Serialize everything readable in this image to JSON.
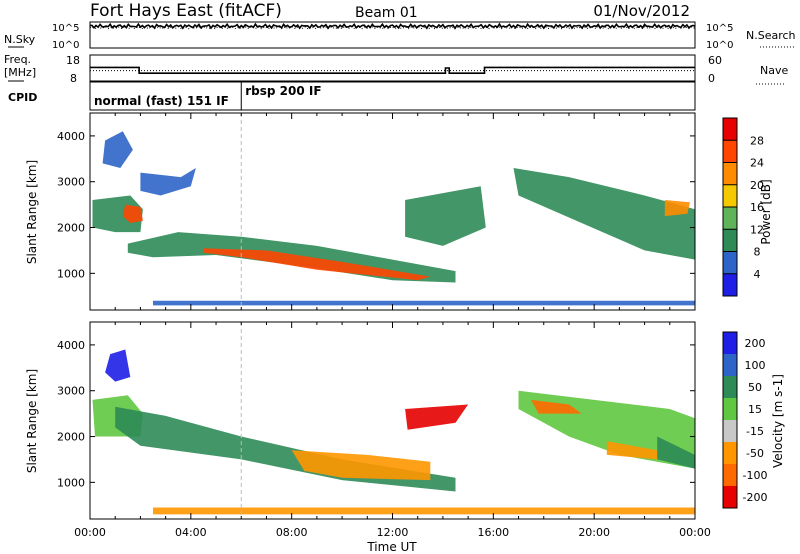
{
  "header": {
    "station": "Fort Hays East (fitACF)",
    "beam": "Beam 01",
    "date": "01/Nov/2012"
  },
  "noise_panel": {
    "left_label": "N.Sky",
    "right_label": "N.Search",
    "ticks": [
      "10^5",
      "10^0"
    ],
    "sky_level": 4.2,
    "search_level": 3.9
  },
  "freq_panel": {
    "left_label_1": "Freq.",
    "left_label_2": "[MHz]",
    "right_label": "Nave",
    "left_ticks": [
      18,
      8
    ],
    "right_ticks": [
      60,
      0
    ],
    "freq_steps": [
      {
        "t": 0.0,
        "v": 13.2
      },
      {
        "t": 1.95,
        "v": 11.0
      },
      {
        "t": 14.1,
        "v": 13.0
      },
      {
        "t": 14.25,
        "v": 11.0
      },
      {
        "t": 15.65,
        "v": 13.2
      },
      {
        "t": 24.0,
        "v": 13.2
      }
    ],
    "nave_level": 24
  },
  "cpid": {
    "label": "CPID",
    "programs": [
      {
        "name": "normal (fast) 151 IF",
        "start": 0.0,
        "end": 6.0
      },
      {
        "name": "rbsp 200 IF",
        "start": 6.0,
        "end": 24.0
      }
    ]
  },
  "chart_data": [
    {
      "type": "heatmap",
      "title": "Power",
      "xlabel": "",
      "ylabel": "Slant Range [km]",
      "xlim": [
        0,
        24
      ],
      "ylim": [
        200,
        4500
      ],
      "y_ticks": [
        1000,
        2000,
        3000,
        4000
      ],
      "colorbar": {
        "label": "Power [dB]",
        "ticks": [
          4,
          8,
          12,
          16,
          20,
          24,
          28
        ],
        "range": [
          0,
          32
        ],
        "colors": [
          "#1e1ee6",
          "#2d64c8",
          "#2e8b57",
          "#5fb45a",
          "#f5c800",
          "#ff8c00",
          "#ff4500",
          "#e60000"
        ]
      },
      "regions": [
        {
          "path": [
            [
              0.1,
              2600
            ],
            [
              1.6,
              2700
            ],
            [
              2.1,
              2400
            ],
            [
              2.0,
              1900
            ],
            [
              1.0,
              1900
            ],
            [
              0.1,
              2000
            ]
          ],
          "value": 10
        },
        {
          "path": [
            [
              1.4,
              2500
            ],
            [
              2.0,
              2450
            ],
            [
              2.1,
              2150
            ],
            [
              1.6,
              2100
            ],
            [
              1.3,
              2250
            ]
          ],
          "value": 26
        },
        {
          "path": [
            [
              0.6,
              3900
            ],
            [
              1.3,
              4100
            ],
            [
              1.7,
              3700
            ],
            [
              1.2,
              3300
            ],
            [
              0.5,
              3400
            ]
          ],
          "value": 7
        },
        {
          "path": [
            [
              2.0,
              3200
            ],
            [
              3.6,
              3100
            ],
            [
              4.2,
              3300
            ],
            [
              4.0,
              2900
            ],
            [
              2.8,
              2700
            ],
            [
              2.0,
              2800
            ]
          ],
          "value": 6
        },
        {
          "path": [
            [
              1.5,
              1650
            ],
            [
              3.5,
              1900
            ],
            [
              6,
              1800
            ],
            [
              9,
              1600
            ],
            [
              12,
              1300
            ],
            [
              14.5,
              1050
            ],
            [
              14.5,
              800
            ],
            [
              12,
              850
            ],
            [
              8.5,
              1150
            ],
            [
              5,
              1400
            ],
            [
              2.5,
              1350
            ],
            [
              1.5,
              1450
            ]
          ],
          "value": 11
        },
        {
          "path": [
            [
              4.5,
              1550
            ],
            [
              7,
              1500
            ],
            [
              10,
              1250
            ],
            [
              13.5,
              930
            ],
            [
              13,
              850
            ],
            [
              9,
              1080
            ],
            [
              6,
              1350
            ],
            [
              4.5,
              1450
            ]
          ],
          "value": 25
        },
        {
          "path": [
            [
              12.5,
              2600
            ],
            [
              15.5,
              2900
            ],
            [
              15.7,
              2000
            ],
            [
              14,
              1600
            ],
            [
              12.5,
              1800
            ]
          ],
          "value": 8
        },
        {
          "path": [
            [
              16.8,
              3300
            ],
            [
              19,
              3100
            ],
            [
              22,
              2700
            ],
            [
              24,
              2400
            ],
            [
              24,
              1300
            ],
            [
              22,
              1500
            ],
            [
              19.5,
              2100
            ],
            [
              17,
              2700
            ]
          ],
          "value": 9
        },
        {
          "path": [
            [
              22.8,
              2600
            ],
            [
              23.8,
              2550
            ],
            [
              23.7,
              2300
            ],
            [
              22.8,
              2250
            ]
          ],
          "value": 22
        },
        {
          "path": [
            [
              2.5,
              300
            ],
            [
              24,
              300
            ],
            [
              24,
              400
            ],
            [
              2.5,
              400
            ]
          ],
          "value": 5
        }
      ]
    },
    {
      "type": "heatmap",
      "title": "Velocity",
      "xlabel": "Time UT",
      "ylabel": "Slant Range [km]",
      "xlim": [
        0,
        24
      ],
      "ylim": [
        200,
        4500
      ],
      "x_ticks": [
        "00:00",
        "04:00",
        "08:00",
        "12:00",
        "16:00",
        "20:00",
        "00:00"
      ],
      "y_ticks": [
        1000,
        2000,
        3000,
        4000
      ],
      "colorbar": {
        "label": "Velocity [m s-1]",
        "ticks": [
          200,
          100,
          50,
          15,
          -15,
          -50,
          -100,
          -200
        ],
        "range": [
          -250,
          250
        ],
        "colors": [
          "#1e1ee6",
          "#2d64c8",
          "#2e8b57",
          "#5fc840",
          "#c8c8c8",
          "#ff9600",
          "#ff6a00",
          "#e60000"
        ]
      },
      "regions": [
        {
          "path": [
            [
              0.1,
              2800
            ],
            [
              1.5,
              2900
            ],
            [
              2.1,
              2500
            ],
            [
              2,
              2000
            ],
            [
              0.2,
              2000
            ]
          ],
          "value": 0
        },
        {
          "path": [
            [
              0.8,
              3800
            ],
            [
              1.4,
              3900
            ],
            [
              1.6,
              3300
            ],
            [
              1.0,
              3200
            ],
            [
              0.6,
              3400
            ]
          ],
          "value": 220
        },
        {
          "path": [
            [
              1.0,
              2650
            ],
            [
              3.0,
              2450
            ],
            [
              6,
              2000
            ],
            [
              10,
              1500
            ],
            [
              14.5,
              1100
            ],
            [
              14.5,
              800
            ],
            [
              10,
              1050
            ],
            [
              6,
              1500
            ],
            [
              2,
              1800
            ],
            [
              1,
              2200
            ]
          ],
          "value": 45
        },
        {
          "path": [
            [
              8,
              1700
            ],
            [
              11,
              1600
            ],
            [
              13.5,
              1450
            ],
            [
              13.5,
              1050
            ],
            [
              10,
              1100
            ],
            [
              8.5,
              1250
            ]
          ],
          "value": -70
        },
        {
          "path": [
            [
              12.5,
              2600
            ],
            [
              15,
              2700
            ],
            [
              14.5,
              2300
            ],
            [
              12.6,
              2150
            ]
          ],
          "value": -180
        },
        {
          "path": [
            [
              17,
              3000
            ],
            [
              20,
              2800
            ],
            [
              23,
              2600
            ],
            [
              24,
              2400
            ],
            [
              24,
              1300
            ],
            [
              21,
              1600
            ],
            [
              19,
              2000
            ],
            [
              17,
              2600
            ]
          ],
          "value": 5
        },
        {
          "path": [
            [
              17.5,
              2800
            ],
            [
              19,
              2700
            ],
            [
              19.5,
              2500
            ],
            [
              17.8,
              2500
            ]
          ],
          "value": -90
        },
        {
          "path": [
            [
              20.5,
              1900
            ],
            [
              22.5,
              1700
            ],
            [
              22.5,
              1500
            ],
            [
              20.5,
              1600
            ]
          ],
          "value": -60
        },
        {
          "path": [
            [
              22.5,
              2000
            ],
            [
              24,
              1600
            ],
            [
              24,
              1300
            ],
            [
              22.5,
              1500
            ]
          ],
          "value": 50
        },
        {
          "path": [
            [
              2.5,
              300
            ],
            [
              24,
              300
            ],
            [
              24,
              450
            ],
            [
              2.5,
              450
            ]
          ],
          "value": -40
        }
      ]
    }
  ]
}
